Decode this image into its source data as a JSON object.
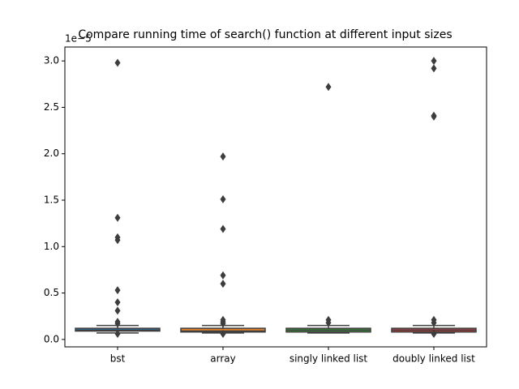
{
  "chart_data": {
    "type": "box",
    "title": "Compare running time of search() function at different input sizes",
    "y_offset_label": "1e−5",
    "categories": [
      "bst",
      "array",
      "singly linked list",
      "doubly linked list"
    ],
    "colors": [
      "#3274a1",
      "#e1812c",
      "#3a923a",
      "#c03d3e"
    ],
    "outlier_color": "#3d3d3d",
    "boxes": [
      {
        "whisker_low": 0.07,
        "q1": 0.09,
        "median": 0.1,
        "q3": 0.12,
        "whisker_high": 0.15,
        "outliers": [
          2.98,
          1.31,
          1.1,
          1.07,
          0.53,
          0.4,
          0.31,
          0.19,
          0.17,
          0.06
        ]
      },
      {
        "whisker_low": 0.07,
        "q1": 0.08,
        "median": 0.09,
        "q3": 0.12,
        "whisker_high": 0.15,
        "outliers": [
          1.97,
          1.51,
          1.19,
          0.69,
          0.6,
          0.21,
          0.19,
          0.17,
          0.06
        ]
      },
      {
        "whisker_low": 0.07,
        "q1": 0.08,
        "median": 0.1,
        "q3": 0.12,
        "whisker_high": 0.15,
        "outliers": [
          2.72,
          0.21,
          0.18
        ]
      },
      {
        "whisker_low": 0.07,
        "q1": 0.08,
        "median": 0.1,
        "q3": 0.12,
        "whisker_high": 0.15,
        "outliers": [
          3.0,
          2.92,
          2.41,
          2.4,
          0.21,
          0.18,
          0.06
        ]
      }
    ],
    "ylim": [
      -0.08,
      3.15
    ],
    "yticks": [
      {
        "value": 0,
        "label": "0.0"
      },
      {
        "value": 0.5,
        "label": "0.5"
      },
      {
        "value": 1,
        "label": "1.0"
      },
      {
        "value": 1.5,
        "label": "1.5"
      },
      {
        "value": 2,
        "label": "2.0"
      },
      {
        "value": 2.5,
        "label": "2.5"
      },
      {
        "value": 3,
        "label": "3.0"
      }
    ]
  }
}
